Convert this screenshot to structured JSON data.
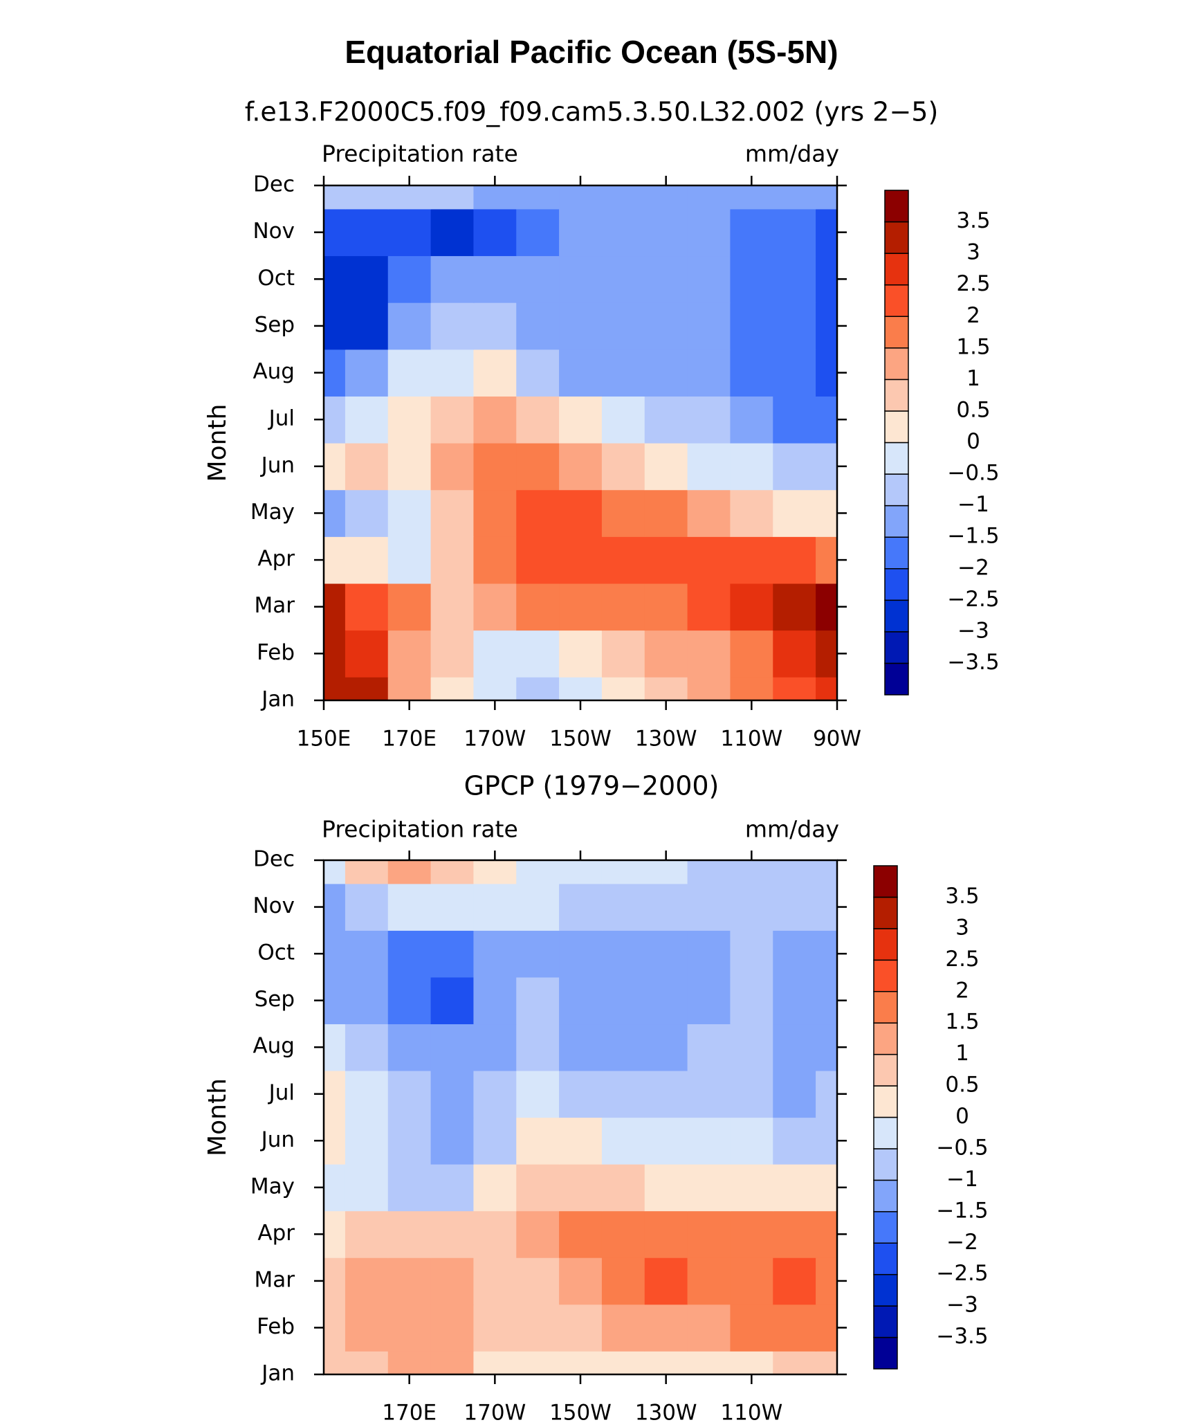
{
  "title": "Equatorial Pacific Ocean (5S-5N)",
  "chart_data": [
    {
      "type": "contour",
      "subtitle": "f.e13.F2000C5.f09_f09.cam5.3.50.L32.002 (yrs 2−5)",
      "left_label": "Precipitation rate",
      "right_label": "mm/day",
      "y_label": "Month",
      "categories": [
        "Jan",
        "Feb",
        "Mar",
        "Apr",
        "May",
        "Jun",
        "Jul",
        "Aug",
        "Sep",
        "Oct",
        "Nov",
        "Dec"
      ],
      "x": [
        150,
        160,
        170,
        180,
        190,
        200,
        210,
        220,
        230,
        240,
        250,
        260,
        270
      ],
      "z": [
        [
          3.3,
          3.2,
          1.3,
          0.4,
          -0.3,
          -0.8,
          -0.4,
          0.2,
          0.6,
          1.0,
          1.5,
          2.1,
          2.6
        ],
        [
          3.3,
          2.9,
          1.4,
          0.5,
          -0.4,
          -0.2,
          0.2,
          0.6,
          1.1,
          1.4,
          1.9,
          2.6,
          3.2
        ],
        [
          3.2,
          2.4,
          1.5,
          0.8,
          1.2,
          1.6,
          1.7,
          1.7,
          1.9,
          2.0,
          2.5,
          3.1,
          3.8
        ],
        [
          0.4,
          0.1,
          -0.1,
          0.6,
          1.7,
          2.2,
          2.2,
          2.2,
          2.1,
          2.0,
          2.4,
          2.1,
          1.7
        ],
        [
          -1.1,
          -0.8,
          -0.3,
          0.6,
          1.7,
          2.1,
          2.1,
          1.8,
          1.5,
          1.0,
          0.5,
          0.2,
          0.1
        ],
        [
          0.3,
          0.6,
          0.4,
          1.1,
          1.7,
          1.6,
          1.3,
          0.8,
          0.2,
          -0.2,
          -0.4,
          -0.7,
          -0.8
        ],
        [
          -0.6,
          -0.3,
          0.2,
          0.6,
          1.2,
          0.8,
          0.3,
          -0.3,
          -0.6,
          -0.8,
          -1.2,
          -1.6,
          -2.0
        ],
        [
          -1.8,
          -1.3,
          -0.3,
          -0.4,
          0.1,
          -0.6,
          -1.1,
          -1.2,
          -1.2,
          -1.2,
          -1.7,
          -1.8,
          -2.2
        ],
        [
          -2.8,
          -2.8,
          -1.2,
          -0.8,
          -0.6,
          -1.2,
          -1.2,
          -1.2,
          -1.2,
          -1.2,
          -1.7,
          -1.8,
          -2.2
        ],
        [
          -2.6,
          -2.7,
          -1.8,
          -1.5,
          -1.3,
          -1.2,
          -1.2,
          -1.2,
          -1.2,
          -1.2,
          -1.7,
          -1.8,
          -2.2
        ],
        [
          -2.2,
          -2.2,
          -2.5,
          -2.7,
          -2.2,
          -1.7,
          -1.3,
          -1.2,
          -1.2,
          -1.2,
          -1.7,
          -1.8,
          -2.2
        ],
        [
          -0.7,
          -0.8,
          -0.6,
          -0.6,
          -1.2,
          -1.2,
          -1.2,
          -1.2,
          -1.2,
          -1.2,
          -1.3,
          -1.3,
          -1.5
        ]
      ],
      "xlim": [
        150,
        270
      ],
      "xticks": [
        {
          "value": 150,
          "label": "150E"
        },
        {
          "value": 170,
          "label": "170E"
        },
        {
          "value": 190,
          "label": "170W"
        },
        {
          "value": 210,
          "label": "150W"
        },
        {
          "value": 230,
          "label": "130W"
        },
        {
          "value": 250,
          "label": "110W"
        },
        {
          "value": 270,
          "label": "90W"
        }
      ],
      "levels": [
        {
          "value": -3.5,
          "label": "−3.5"
        },
        {
          "value": -3,
          "label": "−3"
        },
        {
          "value": -2.5,
          "label": "−2.5"
        },
        {
          "value": -2,
          "label": "−2"
        },
        {
          "value": -1.5,
          "label": "−1.5"
        },
        {
          "value": -1,
          "label": "−1"
        },
        {
          "value": -0.5,
          "label": "−0.5"
        },
        0,
        0.5,
        1,
        1.5,
        2,
        2.5,
        3,
        3.5
      ],
      "colors": [
        "#000096",
        "#0019b4",
        "#0032d2",
        "#1e50f0",
        "#4678fa",
        "#82a5fa",
        "#b4c8fa",
        "#d7e6fa",
        "#fde6d2",
        "#fcc8b0",
        "#fca582",
        "#fa7d4b",
        "#fa5028",
        "#e6320f",
        "#b41e00",
        "#8c0000"
      ]
    },
    {
      "type": "contour",
      "subtitle": "GPCP (1979−2000)",
      "left_label": "Precipitation rate",
      "right_label": "mm/day",
      "y_label": "Month",
      "categories": [
        "Jan",
        "Feb",
        "Mar",
        "Apr",
        "May",
        "Jun",
        "Jul",
        "Aug",
        "Sep",
        "Oct",
        "Nov",
        "Dec"
      ],
      "x": [
        150,
        160,
        170,
        180,
        190,
        200,
        210,
        220,
        230,
        240,
        250,
        260,
        270
      ],
      "z": [
        [
          0.6,
          0.9,
          1.2,
          1.3,
          0.4,
          0.3,
          0.3,
          0.4,
          0.4,
          0.3,
          0.4,
          0.6,
          0.7
        ],
        [
          0.8,
          1.2,
          1.2,
          1.1,
          0.5,
          0.6,
          0.9,
          1.1,
          1.3,
          1.4,
          1.5,
          1.6,
          1.7
        ],
        [
          0.7,
          1.1,
          1.3,
          1.2,
          0.6,
          0.9,
          1.4,
          1.7,
          2.1,
          1.9,
          1.7,
          2.0,
          1.8
        ],
        [
          0.4,
          0.7,
          0.9,
          0.6,
          0.8,
          1.2,
          1.6,
          1.7,
          1.8,
          1.9,
          1.8,
          1.9,
          1.8
        ],
        [
          -0.2,
          -0.3,
          -0.6,
          -0.6,
          0.3,
          0.6,
          0.6,
          0.5,
          0.4,
          0.4,
          0.4,
          0.3,
          0.3
        ],
        [
          0.4,
          -0.4,
          -0.7,
          -1.1,
          -0.6,
          0.1,
          0.1,
          -0.1,
          -0.3,
          -0.4,
          -0.5,
          -0.6,
          -0.6
        ],
        [
          0.3,
          -0.3,
          -0.9,
          -1.1,
          -0.9,
          -0.4,
          -0.6,
          -0.7,
          -0.8,
          -0.7,
          -0.8,
          -1.2,
          -0.9
        ],
        [
          -0.3,
          -0.9,
          -1.2,
          -1.3,
          -1.1,
          -0.8,
          -1.2,
          -1.2,
          -1.1,
          -0.9,
          -0.8,
          -1.1,
          -1.3
        ],
        [
          -1.3,
          -1.2,
          -1.8,
          -2.1,
          -1.2,
          -0.9,
          -1.3,
          -1.3,
          -1.3,
          -1.2,
          -0.9,
          -1.1,
          -1.3
        ],
        [
          -1.2,
          -1.2,
          -1.7,
          -1.8,
          -1.2,
          -1.1,
          -1.2,
          -1.3,
          -1.2,
          -1.1,
          -0.9,
          -1.1,
          -1.3
        ],
        [
          -1.2,
          -0.6,
          -0.3,
          -0.2,
          -0.4,
          -0.5,
          -0.6,
          -0.7,
          -0.7,
          -0.8,
          -0.8,
          -0.8,
          -0.9
        ],
        [
          -0.3,
          0.6,
          1.2,
          0.6,
          0.2,
          -0.2,
          -0.3,
          -0.3,
          -0.5,
          -0.6,
          -0.7,
          -0.7,
          -0.7
        ]
      ],
      "xlim": [
        150,
        270
      ],
      "xticks": [
        {
          "value": 170,
          "label": "170E"
        },
        {
          "value": 190,
          "label": "170W"
        },
        {
          "value": 210,
          "label": "150W"
        },
        {
          "value": 230,
          "label": "130W"
        },
        {
          "value": 250,
          "label": "110W"
        }
      ],
      "levels": [
        {
          "value": -3.5,
          "label": "−3.5"
        },
        {
          "value": -3,
          "label": "−3"
        },
        {
          "value": -2.5,
          "label": "−2.5"
        },
        {
          "value": -2,
          "label": "−2"
        },
        {
          "value": -1.5,
          "label": "−1.5"
        },
        {
          "value": -1,
          "label": "−1"
        },
        {
          "value": -0.5,
          "label": "−0.5"
        },
        0,
        0.5,
        1,
        1.5,
        2,
        2.5,
        3,
        3.5
      ],
      "colors": [
        "#000096",
        "#0019b4",
        "#0032d2",
        "#1e50f0",
        "#4678fa",
        "#82a5fa",
        "#b4c8fa",
        "#d7e6fa",
        "#fde6d2",
        "#fcc8b0",
        "#fca582",
        "#fa7d4b",
        "#fa5028",
        "#e6320f",
        "#b41e00",
        "#8c0000"
      ]
    }
  ]
}
